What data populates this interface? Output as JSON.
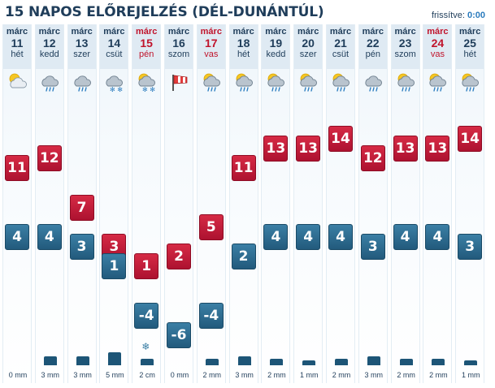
{
  "header": {
    "title": "15 NAPOS ELŐREJELZÉS (DÉL-DUNÁNTÚL)",
    "updated_label": "frissítve:",
    "updated_time": "0:00"
  },
  "colors": {
    "max": "#c2203b",
    "min": "#2f6d92",
    "holiday": "#c0142c",
    "bar": "#1d5577"
  },
  "days": [
    {
      "month": "márc",
      "day": "11",
      "dow": "hét",
      "holiday": false,
      "icon": "partly-cloudy-icon",
      "max": "11",
      "min": "4",
      "precip": "0 mm",
      "precip_mm": 0,
      "snow": false
    },
    {
      "month": "márc",
      "day": "12",
      "dow": "kedd",
      "holiday": false,
      "icon": "cloud-rain-icon",
      "max": "12",
      "min": "4",
      "precip": "3 mm",
      "precip_mm": 3,
      "snow": false
    },
    {
      "month": "márc",
      "day": "13",
      "dow": "szer",
      "holiday": false,
      "icon": "cloud-rain-icon",
      "max": "7",
      "min": "3",
      "precip": "3 mm",
      "precip_mm": 3,
      "snow": false
    },
    {
      "month": "márc",
      "day": "14",
      "dow": "csüt",
      "holiday": false,
      "icon": "cloud-snow-icon",
      "max": "3",
      "min": "1",
      "precip": "5 mm",
      "precip_mm": 5,
      "snow": false
    },
    {
      "month": "márc",
      "day": "15",
      "dow": "pén",
      "holiday": true,
      "icon": "sun-cloud-snow-icon",
      "max": "1",
      "min": "-4",
      "precip": "2 cm",
      "precip_mm": 2,
      "snow": true
    },
    {
      "month": "márc",
      "day": "16",
      "dow": "szom",
      "holiday": false,
      "icon": "windsock-icon",
      "max": "2",
      "min": "-6",
      "precip": "0 mm",
      "precip_mm": 0,
      "snow": false
    },
    {
      "month": "márc",
      "day": "17",
      "dow": "vas",
      "holiday": true,
      "icon": "sun-cloud-rain-icon",
      "max": "5",
      "min": "-4",
      "precip": "2 mm",
      "precip_mm": 2,
      "snow": false
    },
    {
      "month": "márc",
      "day": "18",
      "dow": "hét",
      "holiday": false,
      "icon": "sun-cloud-rain-icon",
      "max": "11",
      "min": "2",
      "precip": "3 mm",
      "precip_mm": 3,
      "snow": false
    },
    {
      "month": "márc",
      "day": "19",
      "dow": "kedd",
      "holiday": false,
      "icon": "sun-cloud-rain-icon",
      "max": "13",
      "min": "4",
      "precip": "2 mm",
      "precip_mm": 2,
      "snow": false
    },
    {
      "month": "márc",
      "day": "20",
      "dow": "szer",
      "holiday": false,
      "icon": "sun-cloud-rain-icon",
      "max": "13",
      "min": "4",
      "precip": "1 mm",
      "precip_mm": 1,
      "snow": false
    },
    {
      "month": "márc",
      "day": "21",
      "dow": "csüt",
      "holiday": false,
      "icon": "sun-cloud-rain-icon",
      "max": "14",
      "min": "4",
      "precip": "2 mm",
      "precip_mm": 2,
      "snow": false
    },
    {
      "month": "márc",
      "day": "22",
      "dow": "pén",
      "holiday": false,
      "icon": "cloud-rain-icon",
      "max": "12",
      "min": "3",
      "precip": "3 mm",
      "precip_mm": 3,
      "snow": false
    },
    {
      "month": "márc",
      "day": "23",
      "dow": "szom",
      "holiday": false,
      "icon": "sun-cloud-rain-icon",
      "max": "13",
      "min": "4",
      "precip": "2 mm",
      "precip_mm": 2,
      "snow": false
    },
    {
      "month": "márc",
      "day": "24",
      "dow": "vas",
      "holiday": true,
      "icon": "sun-cloud-rain-icon",
      "max": "13",
      "min": "4",
      "precip": "2 mm",
      "precip_mm": 2,
      "snow": false
    },
    {
      "month": "márc",
      "day": "25",
      "dow": "hét",
      "holiday": false,
      "icon": "sun-cloud-rain-icon",
      "max": "14",
      "min": "3",
      "precip": "1 mm",
      "precip_mm": 1,
      "snow": false
    }
  ]
}
